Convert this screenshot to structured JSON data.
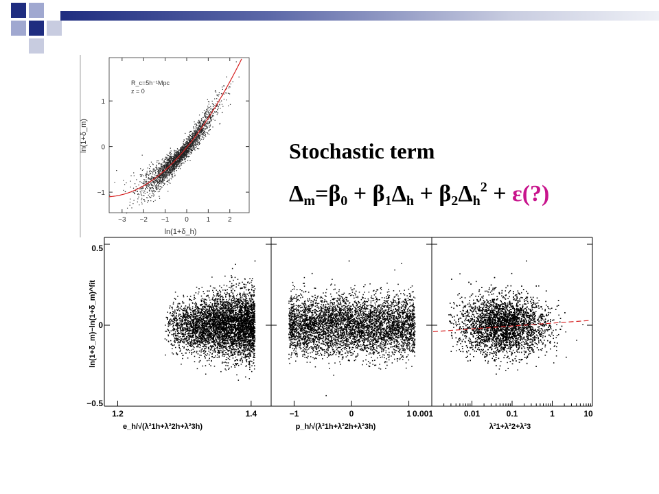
{
  "slide": {
    "heading": "Stochastic term",
    "formula": {
      "delta": "Δ",
      "sub_m": "m",
      "eq": "=β",
      "sub_0": "0",
      "plus1": " + β",
      "sub_1": "1",
      "delta2": "Δ",
      "sub_h1": "h",
      "plus2": " + β",
      "sub_2": "2",
      "delta3": "Δ",
      "sub_h2": "h",
      "sup_2": "2",
      "plus3": " + ",
      "error": "ε(?)"
    },
    "colors": {
      "accent_navy": "#1f2d80",
      "error_term": "#c8148c"
    }
  },
  "chart_data": [
    {
      "type": "scatter",
      "annotation": [
        "R_c=5h⁻¹Mpc",
        "z = 0"
      ],
      "xlabel": "ln(1+δ_h)",
      "ylabel": "ln(1+δ_m)",
      "xlim": [
        -3.6,
        2.9
      ],
      "ylim": [
        -1.45,
        1.95
      ],
      "xticks": [
        "−3",
        "−2",
        "−1",
        "0",
        "1",
        "2"
      ],
      "yticks": [
        "−1",
        "0",
        "1"
      ],
      "fit_curve": {
        "a": -0.02,
        "b": 0.57,
        "c": 0.075
      },
      "fit_color": "#d62020"
    },
    {
      "type": "scatter",
      "panels": [
        {
          "xlabel": "e_h/√(λ²1h+λ²2h+λ²3h)",
          "xticks": [
            "1.2",
            "1.4"
          ],
          "xlim": [
            1.18,
            1.43
          ],
          "cloud_x": [
            1.27,
            1.405
          ]
        },
        {
          "xlabel": "p_h/√(λ²1h+λ²2h+λ²3h)",
          "xticks": [
            "−1",
            "0",
            "1"
          ],
          "xlim": [
            -1.4,
            1.4
          ],
          "cloud_x": [
            -1.1,
            1.1
          ]
        },
        {
          "xlabel": "λ²1+λ²2+λ²3",
          "xticks": [
            "0.001",
            "0.01",
            "0.1",
            "1",
            "10"
          ],
          "xscale": "log",
          "xlim": [
            0.001,
            10
          ],
          "cloud_center": 0.06,
          "trend": {
            "y_at_left": -0.04,
            "y_at_right": 0.03
          }
        }
      ],
      "ylabel": "ln(1+δ_m)−ln(1+δ_m)^fit",
      "ylim": [
        -0.5,
        0.5
      ],
      "yticks": [
        "0.5",
        "0",
        "−0.5"
      ]
    }
  ]
}
